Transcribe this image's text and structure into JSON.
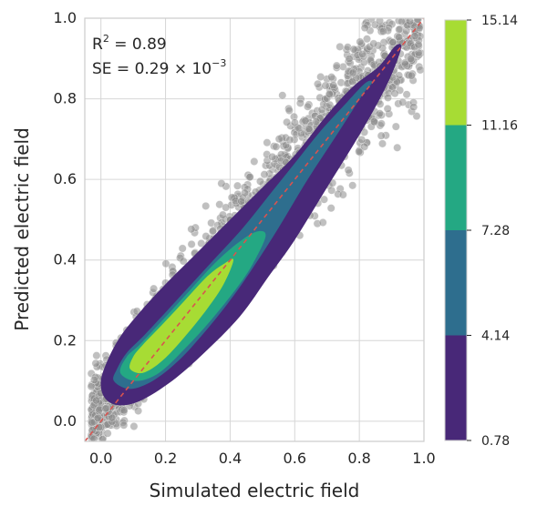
{
  "chart_data": {
    "type": "scatter",
    "title": "",
    "xlabel": "Simulated electric field",
    "ylabel": "Predicted electric field",
    "xlim": [
      -0.05,
      1.0
    ],
    "ylim": [
      -0.05,
      1.0
    ],
    "x_ticks": [
      "0.0",
      "0.2",
      "0.4",
      "0.6",
      "0.8",
      "1.0"
    ],
    "y_ticks": [
      "0.0",
      "0.2",
      "0.4",
      "0.6",
      "0.8",
      "1.0"
    ],
    "grid": true,
    "annotations": {
      "r2": {
        "prefix": "R",
        "sup": "2",
        "value": " = 0.89"
      },
      "se": {
        "prefix": "SE = 0.29 × 10",
        "sup": "−3"
      }
    },
    "reference_line": {
      "type": "identity",
      "style": "dashed",
      "color": "#d9534f"
    },
    "scatter_color": "#8c8c8c",
    "density_levels": [
      0.78,
      4.14,
      7.28,
      11.16,
      15.14
    ],
    "colorbar": {
      "ticks": [
        "15.14",
        "11.16",
        "7.28",
        "4.14",
        "0.78"
      ],
      "colors": [
        "#a7dc34",
        "#24a883",
        "#2e6e8e",
        "#482878"
      ]
    },
    "density_contours": [
      {
        "level": 0.78,
        "color": "#482878",
        "points": [
          [
            0.01,
            0.06
          ],
          [
            0.05,
            0.04
          ],
          [
            0.12,
            0.05
          ],
          [
            0.22,
            0.1
          ],
          [
            0.32,
            0.17
          ],
          [
            0.43,
            0.26
          ],
          [
            0.52,
            0.36
          ],
          [
            0.6,
            0.45
          ],
          [
            0.7,
            0.58
          ],
          [
            0.8,
            0.71
          ],
          [
            0.87,
            0.81
          ],
          [
            0.91,
            0.88
          ],
          [
            0.93,
            0.93
          ],
          [
            0.91,
            0.93
          ],
          [
            0.86,
            0.88
          ],
          [
            0.78,
            0.83
          ],
          [
            0.7,
            0.76
          ],
          [
            0.6,
            0.66
          ],
          [
            0.5,
            0.58
          ],
          [
            0.4,
            0.5
          ],
          [
            0.3,
            0.42
          ],
          [
            0.2,
            0.34
          ],
          [
            0.12,
            0.27
          ],
          [
            0.06,
            0.21
          ],
          [
            0.02,
            0.15
          ],
          [
            0.0,
            0.1
          ]
        ]
      },
      {
        "level": 4.14,
        "color": "#2e6e8e",
        "points": [
          [
            0.04,
            0.1
          ],
          [
            0.09,
            0.08
          ],
          [
            0.16,
            0.1
          ],
          [
            0.24,
            0.15
          ],
          [
            0.32,
            0.22
          ],
          [
            0.4,
            0.3
          ],
          [
            0.47,
            0.38
          ],
          [
            0.55,
            0.48
          ],
          [
            0.64,
            0.6
          ],
          [
            0.73,
            0.71
          ],
          [
            0.81,
            0.81
          ],
          [
            0.84,
            0.84
          ],
          [
            0.82,
            0.84
          ],
          [
            0.76,
            0.79
          ],
          [
            0.68,
            0.72
          ],
          [
            0.6,
            0.64
          ],
          [
            0.52,
            0.56
          ],
          [
            0.44,
            0.48
          ],
          [
            0.36,
            0.41
          ],
          [
            0.28,
            0.34
          ],
          [
            0.2,
            0.27
          ],
          [
            0.13,
            0.21
          ],
          [
            0.08,
            0.17
          ],
          [
            0.05,
            0.13
          ]
        ]
      },
      {
        "level": 7.28,
        "color": "#24a883",
        "points": [
          [
            0.06,
            0.12
          ],
          [
            0.11,
            0.1
          ],
          [
            0.18,
            0.12
          ],
          [
            0.26,
            0.18
          ],
          [
            0.34,
            0.25
          ],
          [
            0.42,
            0.33
          ],
          [
            0.47,
            0.39
          ],
          [
            0.51,
            0.46
          ],
          [
            0.48,
            0.47
          ],
          [
            0.42,
            0.44
          ],
          [
            0.35,
            0.39
          ],
          [
            0.27,
            0.32
          ],
          [
            0.19,
            0.25
          ],
          [
            0.12,
            0.19
          ],
          [
            0.08,
            0.16
          ]
        ]
      },
      {
        "level": 11.16,
        "color": "#a7dc34",
        "points": [
          [
            0.09,
            0.13
          ],
          [
            0.13,
            0.12
          ],
          [
            0.19,
            0.15
          ],
          [
            0.26,
            0.21
          ],
          [
            0.33,
            0.28
          ],
          [
            0.38,
            0.34
          ],
          [
            0.41,
            0.4
          ],
          [
            0.38,
            0.39
          ],
          [
            0.33,
            0.36
          ],
          [
            0.26,
            0.3
          ],
          [
            0.19,
            0.24
          ],
          [
            0.13,
            0.19
          ],
          [
            0.1,
            0.16
          ]
        ]
      }
    ]
  }
}
